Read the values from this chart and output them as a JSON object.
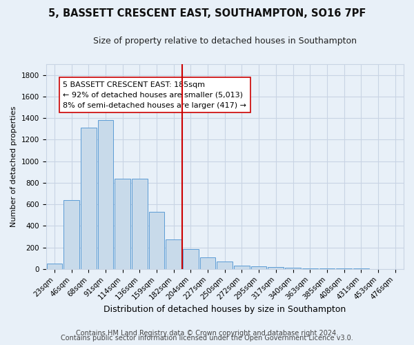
{
  "title": "5, BASSETT CRESCENT EAST, SOUTHAMPTON, SO16 7PF",
  "subtitle": "Size of property relative to detached houses in Southampton",
  "xlabel": "Distribution of detached houses by size in Southampton",
  "ylabel": "Number of detached properties",
  "categories": [
    "23sqm",
    "46sqm",
    "68sqm",
    "91sqm",
    "114sqm",
    "136sqm",
    "159sqm",
    "182sqm",
    "204sqm",
    "227sqm",
    "250sqm",
    "272sqm",
    "295sqm",
    "317sqm",
    "340sqm",
    "363sqm",
    "385sqm",
    "408sqm",
    "431sqm",
    "453sqm",
    "476sqm"
  ],
  "values": [
    50,
    640,
    1310,
    1380,
    840,
    840,
    530,
    275,
    185,
    105,
    70,
    30,
    25,
    20,
    10,
    8,
    5,
    4,
    3,
    2,
    2
  ],
  "bar_color": "#c8daea",
  "bar_edge_color": "#5b9bd5",
  "grid_color": "#c8d4e4",
  "background_color": "#e8f0f8",
  "vline_x_index": 7.5,
  "vline_color": "#cc0000",
  "annotation_text": "5 BASSETT CRESCENT EAST: 185sqm\n← 92% of detached houses are smaller (5,013)\n8% of semi-detached houses are larger (417) →",
  "annotation_box_color": "#ffffff",
  "annotation_box_edge_color": "#cc0000",
  "ylim": [
    0,
    1900
  ],
  "yticks": [
    0,
    200,
    400,
    600,
    800,
    1000,
    1200,
    1400,
    1600,
    1800
  ],
  "footer_line1": "Contains HM Land Registry data © Crown copyright and database right 2024.",
  "footer_line2": "Contains public sector information licensed under the Open Government Licence v3.0.",
  "title_fontsize": 10.5,
  "subtitle_fontsize": 9,
  "tick_fontsize": 7.5,
  "ylabel_fontsize": 8,
  "xlabel_fontsize": 9,
  "annotation_fontsize": 8,
  "footer_fontsize": 7
}
